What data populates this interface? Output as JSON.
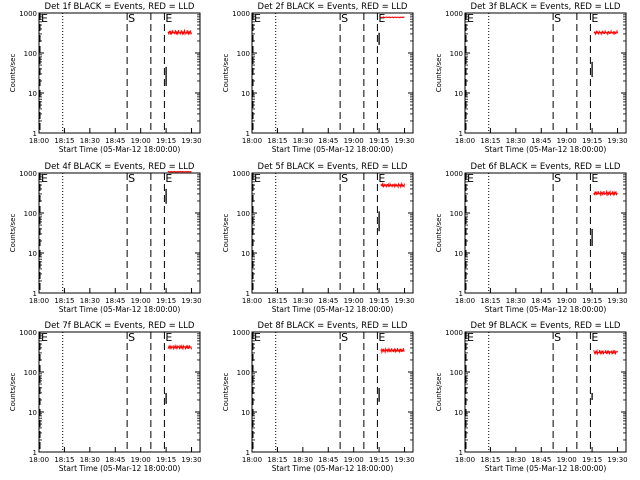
{
  "chart_data": [
    {
      "type": "line",
      "title": "Det 1f BLACK = Events, RED = LLD",
      "xlabel": "Start Time (05-Mar-12 18:00:00)",
      "ylabel": "Counts/sec",
      "yscale": "log",
      "ylim": [
        1,
        1000
      ],
      "xlim_hhmm": [
        "18:00",
        "19:35"
      ],
      "x_tick_labels": [
        "18:00",
        "18:15",
        "18:30",
        "18:45",
        "19:00",
        "19:15",
        "19:30"
      ],
      "y_tick_labels": [
        "1",
        "10",
        "100",
        "1000"
      ],
      "markers": [
        {
          "label": "E",
          "time": "18:00",
          "style": "dashed"
        },
        {
          "label": "",
          "time": "18:14",
          "style": "dotted"
        },
        {
          "label": "S",
          "time": "18:52",
          "style": "dashed"
        },
        {
          "label": "",
          "time": "19:06",
          "style": "dashed"
        },
        {
          "label": "E",
          "time": "19:14",
          "style": "dashed"
        }
      ],
      "series": [
        {
          "name": "Events",
          "color": "#000000",
          "segments": [
            {
              "t_start": "19:15",
              "t_end": "19:15",
              "v_min": 15,
              "v_max": 45
            }
          ]
        },
        {
          "name": "LLD",
          "color": "#ff0000",
          "segments": [
            {
              "t_start": "19:16",
              "t_end": "19:30",
              "v_min": 280,
              "v_max": 380
            }
          ]
        }
      ]
    },
    {
      "type": "line",
      "title": "Det 2f BLACK = Events, RED = LLD",
      "xlabel": "Start Time (05-Mar-12 18:00:00)",
      "ylabel": "Counts/sec",
      "yscale": "log",
      "ylim": [
        1,
        1000
      ],
      "xlim_hhmm": [
        "18:00",
        "19:35"
      ],
      "x_tick_labels": [
        "18:00",
        "18:15",
        "18:30",
        "18:45",
        "19:00",
        "19:15",
        "19:30"
      ],
      "y_tick_labels": [
        "1",
        "10",
        "100",
        "1000"
      ],
      "markers": [
        {
          "label": "E",
          "time": "18:00",
          "style": "dashed"
        },
        {
          "label": "",
          "time": "18:14",
          "style": "dotted"
        },
        {
          "label": "S",
          "time": "18:52",
          "style": "dashed"
        },
        {
          "label": "",
          "time": "19:06",
          "style": "dashed"
        },
        {
          "label": "E",
          "time": "19:14",
          "style": "dashed"
        }
      ],
      "series": [
        {
          "name": "Events",
          "color": "#000000",
          "segments": [
            {
              "t_start": "19:15",
              "t_end": "19:15",
              "v_min": 160,
              "v_max": 320
            }
          ]
        },
        {
          "name": "LLD",
          "color": "#ff0000",
          "segments": [
            {
              "t_start": "19:16",
              "t_end": "19:30",
              "v_min": 760,
              "v_max": 800
            }
          ]
        }
      ]
    },
    {
      "type": "line",
      "title": "Det 3f BLACK = Events, RED = LLD",
      "xlabel": "Start Time (05-Mar-12 18:00:00)",
      "ylabel": "Counts/sec",
      "yscale": "log",
      "ylim": [
        1,
        1000
      ],
      "xlim_hhmm": [
        "18:00",
        "19:35"
      ],
      "x_tick_labels": [
        "18:00",
        "18:15",
        "18:30",
        "18:45",
        "19:00",
        "19:15",
        "19:30"
      ],
      "y_tick_labels": [
        "1",
        "10",
        "100",
        "1000"
      ],
      "markers": [
        {
          "label": "E",
          "time": "18:00",
          "style": "dashed"
        },
        {
          "label": "",
          "time": "18:14",
          "style": "dotted"
        },
        {
          "label": "S",
          "time": "18:52",
          "style": "dashed"
        },
        {
          "label": "",
          "time": "19:06",
          "style": "dashed"
        },
        {
          "label": "E",
          "time": "19:14",
          "style": "dashed"
        }
      ],
      "series": [
        {
          "name": "Events",
          "color": "#000000",
          "segments": [
            {
              "t_start": "19:15",
              "t_end": "19:15",
              "v_min": 25,
              "v_max": 60
            }
          ]
        },
        {
          "name": "LLD",
          "color": "#ff0000",
          "segments": [
            {
              "t_start": "19:16",
              "t_end": "19:30",
              "v_min": 290,
              "v_max": 360
            }
          ]
        }
      ]
    },
    {
      "type": "line",
      "title": "Det 4f BLACK = Events, RED = LLD",
      "xlabel": "Start Time (05-Mar-12 18:00:00)",
      "ylabel": "Counts/sec",
      "yscale": "log",
      "ylim": [
        1,
        1000
      ],
      "xlim_hhmm": [
        "18:00",
        "19:35"
      ],
      "x_tick_labels": [
        "18:00",
        "18:15",
        "18:30",
        "18:45",
        "19:00",
        "19:15",
        "19:30"
      ],
      "y_tick_labels": [
        "1",
        "10",
        "100",
        "1000"
      ],
      "markers": [
        {
          "label": "E",
          "time": "18:00",
          "style": "dashed"
        },
        {
          "label": "",
          "time": "18:14",
          "style": "dotted"
        },
        {
          "label": "S",
          "time": "18:52",
          "style": "dashed"
        },
        {
          "label": "",
          "time": "19:06",
          "style": "dashed"
        },
        {
          "label": "E",
          "time": "19:14",
          "style": "dashed"
        }
      ],
      "series": [
        {
          "name": "Events",
          "color": "#000000",
          "segments": [
            {
              "t_start": "19:15",
              "t_end": "19:15",
              "v_min": 170,
              "v_max": 400
            }
          ]
        },
        {
          "name": "LLD",
          "color": "#ff0000",
          "segments": [
            {
              "t_start": "19:16",
              "t_end": "19:30",
              "v_min": 1050,
              "v_max": 1100
            }
          ]
        }
      ]
    },
    {
      "type": "line",
      "title": "Det 5f BLACK = Events, RED = LLD",
      "xlabel": "Start Time (05-Mar-12 18:00:00)",
      "ylabel": "Counts/sec",
      "yscale": "log",
      "ylim": [
        1,
        1000
      ],
      "xlim_hhmm": [
        "18:00",
        "19:35"
      ],
      "x_tick_labels": [
        "18:00",
        "18:15",
        "18:30",
        "18:45",
        "19:00",
        "19:15",
        "19:30"
      ],
      "y_tick_labels": [
        "1",
        "10",
        "100",
        "1000"
      ],
      "markers": [
        {
          "label": "E",
          "time": "18:00",
          "style": "dashed"
        },
        {
          "label": "",
          "time": "18:14",
          "style": "dotted"
        },
        {
          "label": "S",
          "time": "18:52",
          "style": "dashed"
        },
        {
          "label": "",
          "time": "19:06",
          "style": "dashed"
        },
        {
          "label": "E",
          "time": "19:14",
          "style": "dashed"
        }
      ],
      "series": [
        {
          "name": "Events",
          "color": "#000000",
          "segments": [
            {
              "t_start": "19:15",
              "t_end": "19:15",
              "v_min": 35,
              "v_max": 110
            }
          ]
        },
        {
          "name": "LLD",
          "color": "#ff0000",
          "segments": [
            {
              "t_start": "19:16",
              "t_end": "19:30",
              "v_min": 430,
              "v_max": 560
            }
          ]
        }
      ]
    },
    {
      "type": "line",
      "title": "Det 6f BLACK = Events, RED = LLD",
      "xlabel": "Start Time (05-Mar-12 18:00:00)",
      "ylabel": "Counts/sec",
      "yscale": "log",
      "ylim": [
        1,
        1000
      ],
      "xlim_hhmm": [
        "18:00",
        "19:35"
      ],
      "x_tick_labels": [
        "18:00",
        "18:15",
        "18:30",
        "18:45",
        "19:00",
        "19:15",
        "19:30"
      ],
      "y_tick_labels": [
        "1",
        "10",
        "100",
        "1000"
      ],
      "markers": [
        {
          "label": "E",
          "time": "18:00",
          "style": "dashed"
        },
        {
          "label": "",
          "time": "18:14",
          "style": "dotted"
        },
        {
          "label": "S",
          "time": "18:52",
          "style": "dashed"
        },
        {
          "label": "",
          "time": "19:06",
          "style": "dashed"
        },
        {
          "label": "E",
          "time": "19:14",
          "style": "dashed"
        }
      ],
      "series": [
        {
          "name": "Events",
          "color": "#000000",
          "segments": [
            {
              "t_start": "19:15",
              "t_end": "19:15",
              "v_min": 15,
              "v_max": 40
            }
          ]
        },
        {
          "name": "LLD",
          "color": "#ff0000",
          "segments": [
            {
              "t_start": "19:16",
              "t_end": "19:30",
              "v_min": 270,
              "v_max": 360
            }
          ]
        }
      ]
    },
    {
      "type": "line",
      "title": "Det 7f BLACK = Events, RED = LLD",
      "xlabel": "Start Time (05-Mar-12 18:00:00)",
      "ylabel": "Counts/sec",
      "yscale": "log",
      "ylim": [
        1,
        1000
      ],
      "xlim_hhmm": [
        "18:00",
        "19:35"
      ],
      "x_tick_labels": [
        "18:00",
        "18:15",
        "18:30",
        "18:45",
        "19:00",
        "19:15",
        "19:30"
      ],
      "y_tick_labels": [
        "1",
        "10",
        "100",
        "1000"
      ],
      "markers": [
        {
          "label": "E",
          "time": "18:00",
          "style": "dashed"
        },
        {
          "label": "",
          "time": "18:14",
          "style": "dotted"
        },
        {
          "label": "S",
          "time": "18:52",
          "style": "dashed"
        },
        {
          "label": "",
          "time": "19:06",
          "style": "dashed"
        },
        {
          "label": "E",
          "time": "19:14",
          "style": "dashed"
        }
      ],
      "series": [
        {
          "name": "Events",
          "color": "#000000",
          "segments": [
            {
              "t_start": "19:15",
              "t_end": "19:15",
              "v_min": 16,
              "v_max": 30
            }
          ]
        },
        {
          "name": "LLD",
          "color": "#ff0000",
          "segments": [
            {
              "t_start": "19:16",
              "t_end": "19:30",
              "v_min": 360,
              "v_max": 480
            }
          ]
        }
      ]
    },
    {
      "type": "line",
      "title": "Det 8f BLACK = Events, RED = LLD",
      "xlabel": "Start Time (05-Mar-12 18:00:00)",
      "ylabel": "Counts/sec",
      "yscale": "log",
      "ylim": [
        1,
        1000
      ],
      "xlim_hhmm": [
        "18:00",
        "19:35"
      ],
      "x_tick_labels": [
        "18:00",
        "18:15",
        "18:30",
        "18:45",
        "19:00",
        "19:15",
        "19:30"
      ],
      "y_tick_labels": [
        "1",
        "10",
        "100",
        "1000"
      ],
      "markers": [
        {
          "label": "E",
          "time": "18:00",
          "style": "dashed"
        },
        {
          "label": "",
          "time": "18:14",
          "style": "dotted"
        },
        {
          "label": "S",
          "time": "18:52",
          "style": "dashed"
        },
        {
          "label": "",
          "time": "19:06",
          "style": "dashed"
        },
        {
          "label": "E",
          "time": "19:14",
          "style": "dashed"
        }
      ],
      "series": [
        {
          "name": "Events",
          "color": "#000000",
          "segments": [
            {
              "t_start": "19:15",
              "t_end": "19:15",
              "v_min": 18,
              "v_max": 40
            }
          ]
        },
        {
          "name": "LLD",
          "color": "#ff0000",
          "segments": [
            {
              "t_start": "19:16",
              "t_end": "19:30",
              "v_min": 300,
              "v_max": 400
            }
          ]
        }
      ]
    },
    {
      "type": "line",
      "title": "Det 9f BLACK = Events, RED = LLD",
      "xlabel": "Start Time (05-Mar-12 18:00:00)",
      "ylabel": "Counts/sec",
      "yscale": "log",
      "ylim": [
        1,
        1000
      ],
      "xlim_hhmm": [
        "18:00",
        "19:35"
      ],
      "x_tick_labels": [
        "18:00",
        "18:15",
        "18:30",
        "18:45",
        "19:00",
        "19:15",
        "19:30"
      ],
      "y_tick_labels": [
        "1",
        "10",
        "100",
        "1000"
      ],
      "markers": [
        {
          "label": "E",
          "time": "18:00",
          "style": "dashed"
        },
        {
          "label": "",
          "time": "18:14",
          "style": "dotted"
        },
        {
          "label": "S",
          "time": "18:52",
          "style": "dashed"
        },
        {
          "label": "",
          "time": "19:06",
          "style": "dashed"
        },
        {
          "label": "E",
          "time": "19:14",
          "style": "dashed"
        }
      ],
      "series": [
        {
          "name": "Events",
          "color": "#000000",
          "segments": [
            {
              "t_start": "19:15",
              "t_end": "19:15",
              "v_min": 20,
              "v_max": 30
            }
          ]
        },
        {
          "name": "LLD",
          "color": "#ff0000",
          "segments": [
            {
              "t_start": "19:16",
              "t_end": "19:30",
              "v_min": 270,
              "v_max": 360
            }
          ]
        }
      ]
    }
  ]
}
